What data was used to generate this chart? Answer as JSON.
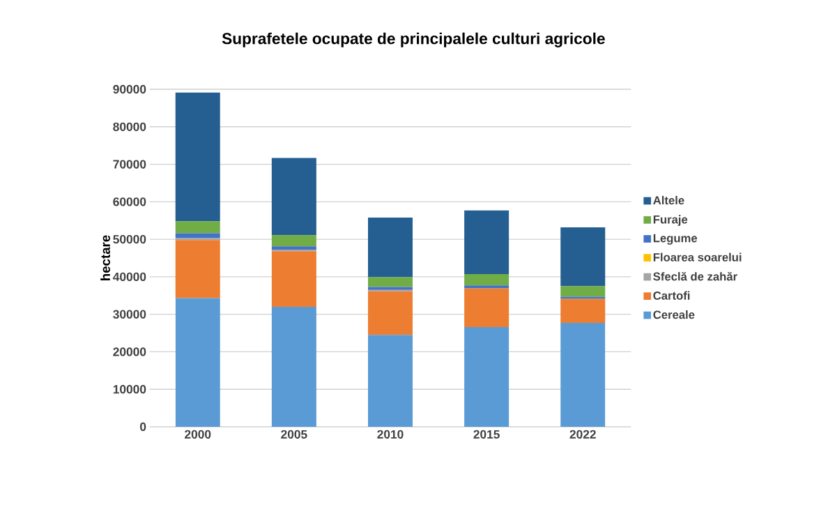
{
  "chart_data": {
    "type": "bar",
    "title": "Suprafetele ocupate de principalele culturi agricole",
    "ylabel": "hectare",
    "categories": [
      "2000",
      "2005",
      "2010",
      "2015",
      "2022"
    ],
    "stacked": true,
    "series": [
      {
        "name": "Cereale",
        "color": "#5b9bd5",
        "values": [
          34300,
          32000,
          24500,
          26600,
          27700
        ]
      },
      {
        "name": "Cartofi",
        "color": "#ed7d31",
        "values": [
          15500,
          14800,
          11600,
          10300,
          6400
        ]
      },
      {
        "name": "Sfeclă de zahăr",
        "color": "#a5a5a5",
        "values": [
          500,
          400,
          400,
          null,
          null
        ]
      },
      {
        "name": "Floarea soarelui",
        "color": "#ffc000",
        "values": [
          null,
          null,
          null,
          null,
          null
        ]
      },
      {
        "name": "Legume",
        "color": "#4472c4",
        "values": [
          1300,
          900,
          800,
          800,
          600
        ]
      },
      {
        "name": "Furaje",
        "color": "#70ad47",
        "values": [
          3200,
          3000,
          2600,
          3000,
          2800
        ]
      },
      {
        "name": "Altele",
        "color": "#255e91",
        "values": [
          34300,
          20600,
          15900,
          17000,
          15700
        ]
      }
    ],
    "ylim": [
      0,
      90000
    ],
    "yticks": [
      0,
      10000,
      20000,
      30000,
      40000,
      50000,
      60000,
      70000,
      80000,
      90000
    ],
    "grid": "y",
    "legend": "right"
  }
}
